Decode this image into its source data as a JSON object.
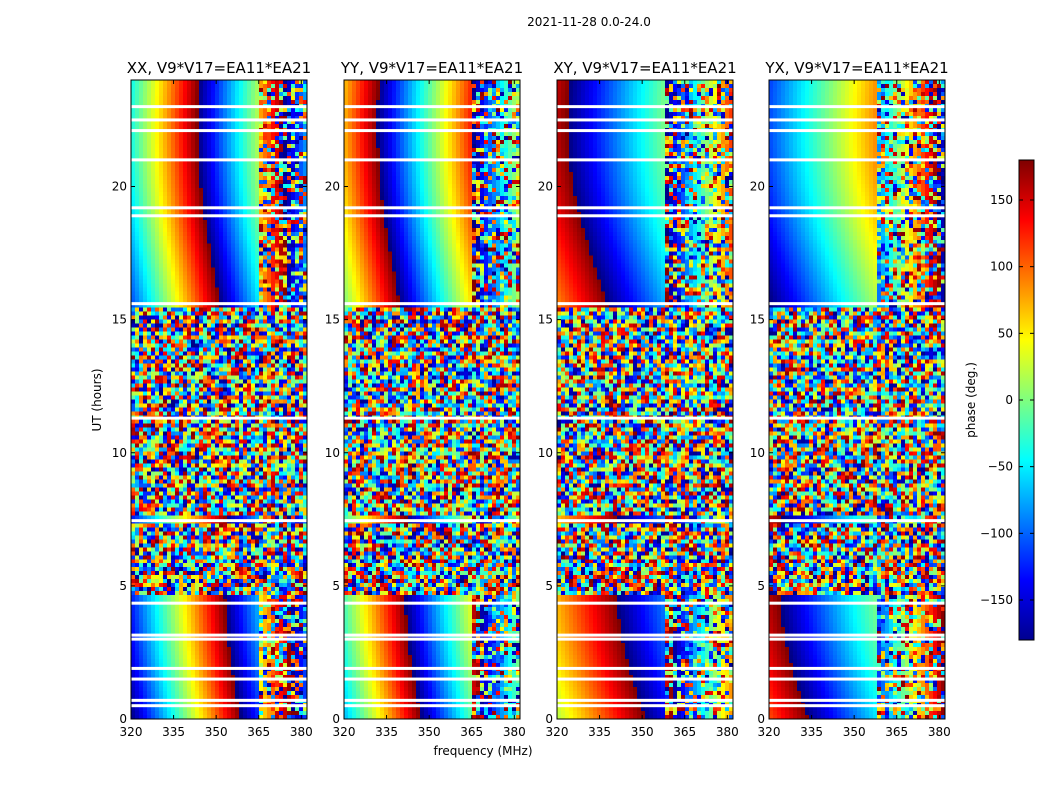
{
  "figure": {
    "suptitle": "2021-11-28 0.0-24.0"
  },
  "chart_data": {
    "type": "heatmap",
    "title": "2021-11-28 0.0-24.0",
    "xlabel": "frequency (MHz)",
    "ylabel": "UT (hours)",
    "xlim": [
      320,
      382
    ],
    "ylim": [
      0,
      24
    ],
    "xticks": [
      320,
      335,
      350,
      365,
      380
    ],
    "yticks": [
      0,
      5,
      10,
      15,
      20
    ],
    "panels": [
      {
        "title": "XX, V9*V17=EA11*EA21",
        "pol": "XX"
      },
      {
        "title": "YY, V9*V17=EA11*EA21",
        "pol": "YY"
      },
      {
        "title": "XY, V9*V17=EA11*EA21",
        "pol": "XY"
      },
      {
        "title": "YX, V9*V17=EA11*EA21",
        "pol": "YX"
      }
    ],
    "colorbar": {
      "label": "phase (deg.)",
      "range": [
        -180,
        180
      ],
      "ticks": [
        150,
        100,
        50,
        0,
        -50,
        -100,
        -150
      ],
      "tick_labels": [
        "150",
        "100",
        "50",
        "0",
        "−50",
        "−100",
        "−150"
      ],
      "colormap": "jet"
    },
    "noise_regions_hours": [
      [
        4.6,
        7.3
      ],
      [
        7.6,
        15.4
      ]
    ],
    "blank_rows_hours": [
      0.5,
      0.7,
      1.5,
      1.9,
      3.0,
      3.15,
      4.35,
      7.45,
      11.3,
      15.6,
      18.9,
      19.2,
      21.0,
      22.1,
      22.5,
      23.0
    ]
  }
}
